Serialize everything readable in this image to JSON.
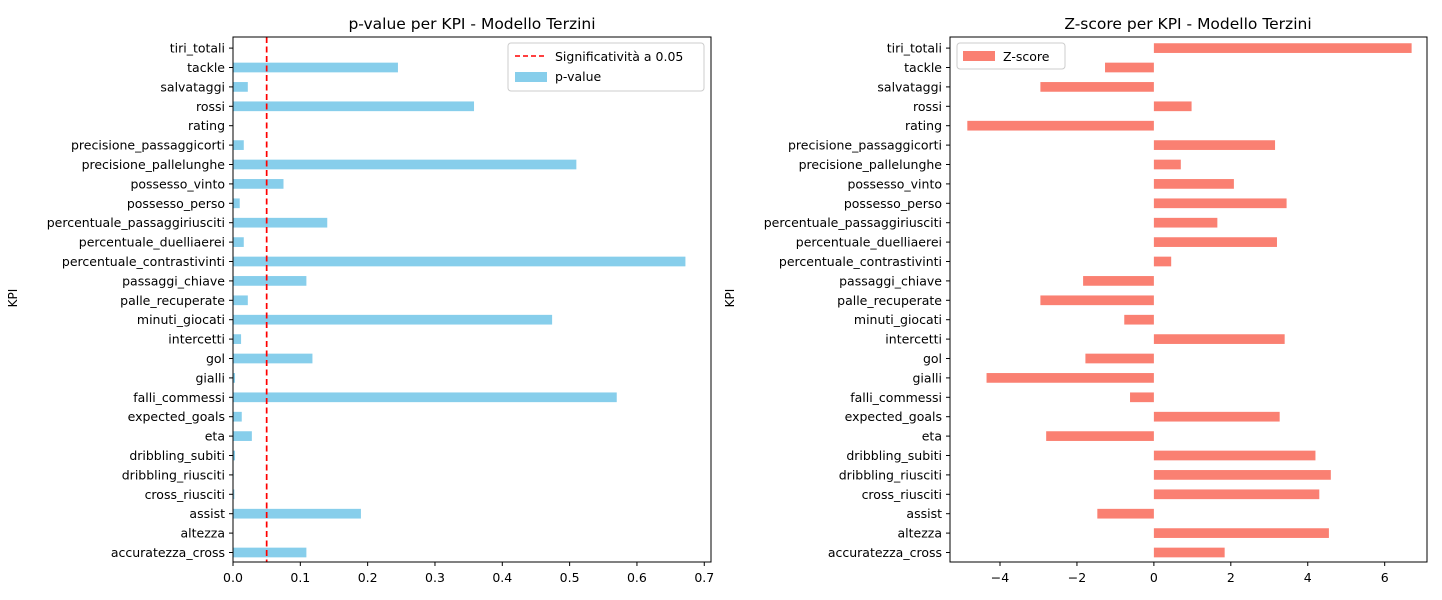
{
  "chart_data": [
    {
      "type": "bar",
      "orientation": "horizontal",
      "title": "p-value per KPI - Modello Terzini",
      "xlabel": "",
      "ylabel": "KPI",
      "xlim": [
        0,
        0.71
      ],
      "xticks": [
        "0.0",
        "0.1",
        "0.2",
        "0.3",
        "0.4",
        "0.5",
        "0.6",
        "0.7"
      ],
      "xtick_values": [
        0,
        0.1,
        0.2,
        0.3,
        0.4,
        0.5,
        0.6,
        0.7
      ],
      "grid": false,
      "legend_position": "upper right",
      "categories": [
        "tiri_totali",
        "tackle",
        "salvataggi",
        "rossi",
        "rating",
        "precisione_passaggicorti",
        "precisione_pallelunghe",
        "possesso_vinto",
        "possesso_perso",
        "percentuale_passaggiriusciti",
        "percentuale_duelliaerei",
        "percentuale_contrastivinti",
        "passaggi_chiave",
        "palle_recuperate",
        "minuti_giocati",
        "intercetti",
        "gol",
        "gialli",
        "falli_commessi",
        "expected_goals",
        "eta",
        "dribbling_subiti",
        "dribbling_riusciti",
        "cross_riusciti",
        "assist",
        "altezza",
        "accuratezza_cross"
      ],
      "series": [
        {
          "name": "p-value",
          "color": "#87ceeb",
          "values": [
            0.0,
            0.245,
            0.022,
            0.358,
            0.0,
            0.016,
            0.51,
            0.075,
            0.01,
            0.14,
            0.016,
            0.672,
            0.109,
            0.022,
            0.474,
            0.012,
            0.118,
            0.003,
            0.57,
            0.013,
            0.028,
            0.003,
            0.001,
            0.002,
            0.19,
            0.0,
            0.109
          ]
        }
      ],
      "reference_line": {
        "name": "Significatività a 0.05",
        "value": 0.05,
        "color": "#ff0000",
        "style": "dashed"
      }
    },
    {
      "type": "bar",
      "orientation": "horizontal",
      "title": "Z-score per KPI - Modello Terzini",
      "xlabel": "",
      "ylabel": "KPI",
      "xlim": [
        -5.3,
        7.1
      ],
      "xticks": [
        "−4",
        "−2",
        "0",
        "2",
        "4",
        "6"
      ],
      "xtick_values": [
        -4,
        -2,
        0,
        2,
        4,
        6
      ],
      "grid": false,
      "legend_position": "upper left",
      "categories": [
        "tiri_totali",
        "tackle",
        "salvataggi",
        "rossi",
        "rating",
        "precisione_passaggicorti",
        "precisione_pallelunghe",
        "possesso_vinto",
        "possesso_perso",
        "percentuale_passaggiriusciti",
        "percentuale_duelliaerei",
        "percentuale_contrastivinti",
        "passaggi_chiave",
        "palle_recuperate",
        "minuti_giocati",
        "intercetti",
        "gol",
        "gialli",
        "falli_commessi",
        "expected_goals",
        "eta",
        "dribbling_subiti",
        "dribbling_riusciti",
        "cross_riusciti",
        "assist",
        "altezza",
        "accuratezza_cross"
      ],
      "series": [
        {
          "name": "Z-score",
          "color": "#fa8072",
          "values": [
            6.7,
            -1.27,
            -2.95,
            0.98,
            -4.85,
            3.15,
            0.7,
            2.08,
            3.45,
            1.65,
            3.2,
            0.45,
            -1.84,
            -2.95,
            -0.77,
            3.4,
            -1.78,
            -4.35,
            -0.62,
            3.27,
            -2.8,
            4.2,
            4.6,
            4.3,
            -1.47,
            4.55,
            1.84
          ]
        }
      ]
    }
  ]
}
